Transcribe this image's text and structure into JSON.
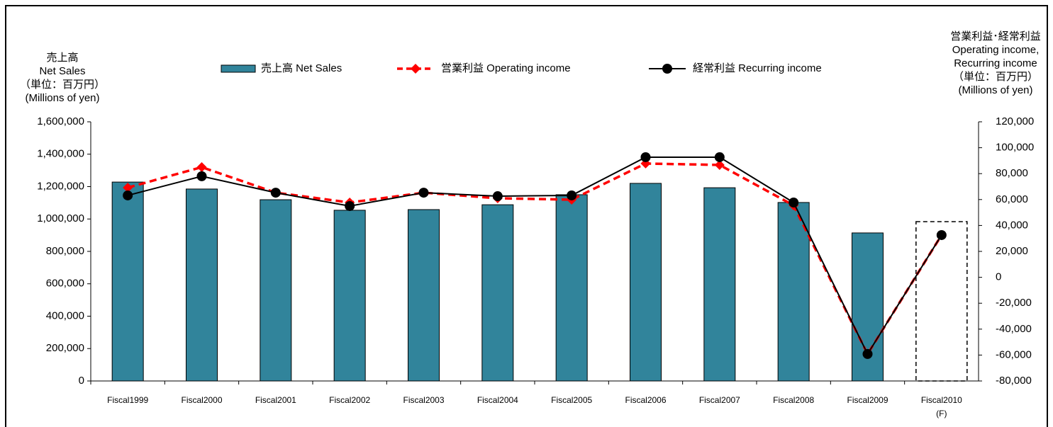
{
  "chart_data": {
    "type": "combo",
    "categories": [
      "Fiscal1999",
      "Fiscal2000",
      "Fiscal2001",
      "Fiscal2002",
      "Fiscal2003",
      "Fiscal2004",
      "Fiscal2005",
      "Fiscal2006",
      "Fiscal2007",
      "Fiscal2008",
      "Fiscal2009",
      "Fiscal2010"
    ],
    "forecast_note": "(F)",
    "y_label": [
      "売上高",
      "Net Sales",
      "（単位：百万円）",
      "(Millions of yen)"
    ],
    "y2_label": [
      "営業利益･経常利益",
      "Operating income,",
      "Recurring income",
      "（単位：百万円）",
      "(Millions of yen)"
    ],
    "series": [
      {
        "name": "売上高 Net Sales",
        "type": "bar",
        "color": "#31849b",
        "values": [
          1228000,
          1185000,
          1119000,
          1054000,
          1058000,
          1088000,
          1150000,
          1220000,
          1193000,
          1102000,
          914000,
          null
        ]
      },
      {
        "name": "営業利益 Operating income",
        "type": "line",
        "axis": "y2",
        "color": "#ff0000",
        "dashed": true,
        "marker": "diamond",
        "values": [
          69200,
          85000,
          65300,
          57700,
          65300,
          61000,
          59900,
          87800,
          86700,
          55500,
          -59200,
          32600
        ]
      },
      {
        "name": "経常利益 Recurring income",
        "type": "line",
        "axis": "y2",
        "color": "#000000",
        "dashed": false,
        "marker": "circle",
        "values": [
          63200,
          78000,
          65300,
          55000,
          65300,
          62600,
          63200,
          92700,
          92700,
          57700,
          -59200,
          32600
        ]
      }
    ],
    "ylim": [
      0,
      1600000
    ],
    "yticks": [
      0,
      {
        "value": 200000,
        "label": "200,000"
      },
      {
        "value": 400000,
        "label": "400,000"
      },
      {
        "value": 600000,
        "label": "600,000"
      },
      {
        "value": 800000,
        "label": "800,000"
      },
      {
        "value": 1000000,
        "label": "1,000,000"
      },
      {
        "value": 1200000,
        "label": "1,200,000"
      },
      {
        "value": 1400000,
        "label": "1,400,000"
      },
      {
        "value": 1600000,
        "label": "1,600,000"
      }
    ],
    "y2lim": [
      -80000,
      120000
    ],
    "y2ticks": [
      {
        "value": -80000,
        "label": "-80,000"
      },
      {
        "value": -60000,
        "label": "-60,000"
      },
      {
        "value": -40000,
        "label": "-40,000"
      },
      {
        "value": -20000,
        "label": "-20,000"
      },
      0,
      {
        "value": 20000,
        "label": "20,000"
      },
      {
        "value": 40000,
        "label": "40,000"
      },
      {
        "value": 60000,
        "label": "60,000"
      },
      {
        "value": 80000,
        "label": "80,000"
      },
      {
        "value": 100000,
        "label": "100,000"
      },
      {
        "value": 120000,
        "label": "120,000"
      }
    ],
    "negative_tick_color": "#ff0000",
    "grid": false,
    "legend": "top"
  }
}
